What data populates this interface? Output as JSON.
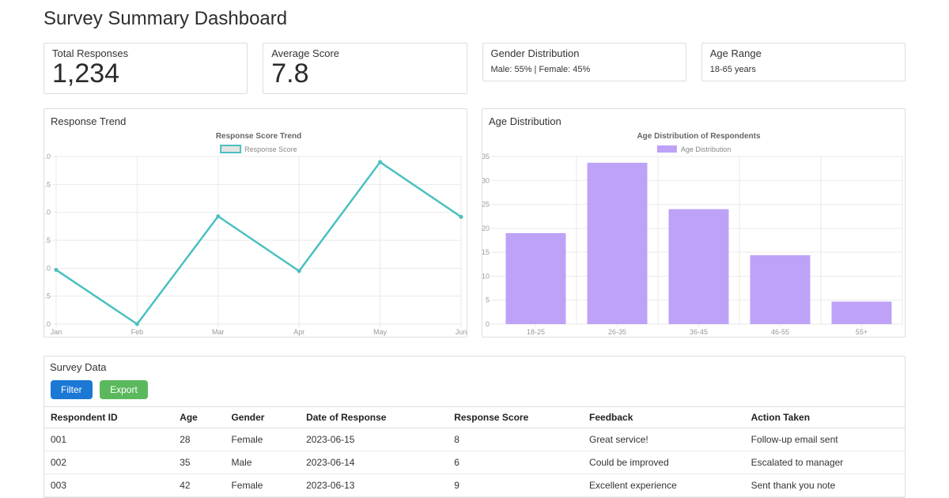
{
  "page": {
    "title": "Survey Summary Dashboard"
  },
  "stats": [
    {
      "label": "Total Responses",
      "value": "1,234",
      "size": "large"
    },
    {
      "label": "Average Score",
      "value": "7.8",
      "size": "large"
    },
    {
      "label": "Gender Distribution",
      "value": "Male: 55% | Female: 45%",
      "size": "small"
    },
    {
      "label": "Age Range",
      "value": "18-65 years",
      "size": "small"
    }
  ],
  "panels": {
    "response_trend_title": "Response Trend",
    "age_distribution_title": "Age Distribution"
  },
  "chart_data": [
    {
      "type": "line",
      "title": "Response Score Trend",
      "legend": "Response Score",
      "legend_position": "top",
      "x": [
        "Jan",
        "Feb",
        "Mar",
        "Apr",
        "May",
        "Jun"
      ],
      "values": [
        6.97,
        6.0,
        7.93,
        6.95,
        8.9,
        7.92
      ],
      "ylim": [
        6.0,
        9.0
      ],
      "ytick_step": 0.5,
      "ytick_decimals": 1,
      "grid": true,
      "line_color": "#4bc0c0",
      "legend_fill": "#e4e4e4"
    },
    {
      "type": "bar",
      "title": "Age Distribution of Respondents",
      "legend": "Age Distribution",
      "legend_position": "top",
      "categories": [
        "18-25",
        "26-35",
        "36-45",
        "46-55",
        "55+"
      ],
      "values": [
        19,
        33.7,
        24,
        14.4,
        4.7
      ],
      "ylim": [
        0,
        35
      ],
      "ytick_step": 5,
      "ytick_decimals": 0,
      "grid": true,
      "bar_color": "#bda2f8"
    }
  ],
  "survey_table": {
    "heading": "Survey Data",
    "buttons": {
      "filter": "Filter",
      "export": "Export"
    },
    "columns": [
      "Respondent ID",
      "Age",
      "Gender",
      "Date of Response",
      "Response Score",
      "Feedback",
      "Action Taken"
    ],
    "rows": [
      [
        "001",
        "28",
        "Female",
        "2023-06-15",
        "8",
        "Great service!",
        "Follow-up email sent"
      ],
      [
        "002",
        "35",
        "Male",
        "2023-06-14",
        "6",
        "Could be improved",
        "Escalated to manager"
      ],
      [
        "003",
        "42",
        "Female",
        "2023-06-13",
        "9",
        "Excellent experience",
        "Sent thank you note"
      ]
    ]
  },
  "colors": {
    "filter_button": "#1b78d4",
    "export_button": "#5cb85c",
    "line": "#4bc0c0",
    "bars": "#bda2f8"
  }
}
